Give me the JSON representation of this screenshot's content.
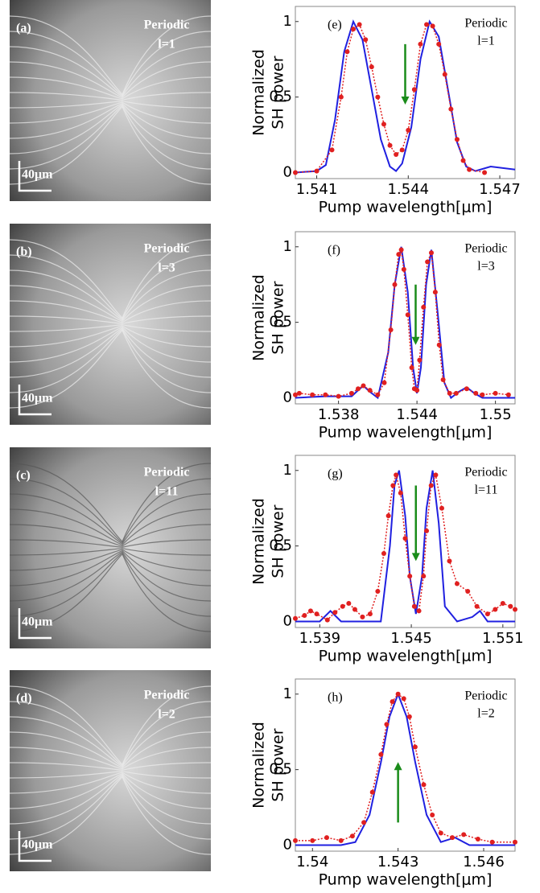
{
  "images": [
    {
      "label": "(a)",
      "text": [
        "Periodic",
        "l=1"
      ],
      "scale": "40μm"
    },
    {
      "label": "(b)",
      "text": [
        "Periodic",
        "l=3"
      ],
      "scale": "40μm"
    },
    {
      "label": "(c)",
      "text": [
        "Periodic",
        "l=11"
      ],
      "scale": "40μm"
    },
    {
      "label": "(d)",
      "text": [
        "Periodic",
        "l=2"
      ],
      "scale": "40μm"
    }
  ],
  "chart_data": [
    {
      "type": "line",
      "panel_label": "(e)",
      "annotation": [
        "Periodic",
        "l=1"
      ],
      "ylabel": [
        "Normalized",
        "SH power"
      ],
      "xlabel": "Pump wavelength[μm]",
      "xlim": [
        1.5403,
        1.5475
      ],
      "xticks": [
        1.541,
        1.544,
        1.547
      ],
      "ylim": [
        -0.04,
        1.1
      ],
      "yticks": [
        0,
        0.5,
        1
      ],
      "arrow": {
        "x": 1.5439,
        "y_from": 0.85,
        "y_to": 0.45,
        "color": "#1a8c1a"
      },
      "series": [
        {
          "color": "#2020e0",
          "line_style": "solid",
          "markers": false,
          "x": [
            1.5403,
            1.541,
            1.5413,
            1.5416,
            1.5419,
            1.5422,
            1.5425,
            1.5428,
            1.5431,
            1.5434,
            1.5436,
            1.5438,
            1.5441,
            1.5444,
            1.5447,
            1.545,
            1.5453,
            1.5456,
            1.5459,
            1.5462,
            1.5467,
            1.5475
          ],
          "values": [
            0,
            0.01,
            0.05,
            0.35,
            0.8,
            1,
            0.88,
            0.55,
            0.22,
            0.04,
            0.01,
            0.06,
            0.3,
            0.75,
            1,
            0.9,
            0.55,
            0.2,
            0.04,
            0.01,
            0.04,
            0.02
          ]
        },
        {
          "color": "#e02020",
          "line_style": "dotted",
          "markers": true,
          "x": [
            1.5403,
            1.541,
            1.5415,
            1.5418,
            1.542,
            1.5422,
            1.5424,
            1.5426,
            1.5428,
            1.543,
            1.5432,
            1.5434,
            1.5436,
            1.5438,
            1.544,
            1.5442,
            1.5444,
            1.5446,
            1.5448,
            1.545,
            1.5452,
            1.5454,
            1.5456,
            1.5458,
            1.546,
            1.5465
          ],
          "values": [
            0,
            0.01,
            0.15,
            0.5,
            0.8,
            0.95,
            0.98,
            0.88,
            0.7,
            0.5,
            0.32,
            0.18,
            0.12,
            0.15,
            0.28,
            0.55,
            0.85,
            0.98,
            0.97,
            0.85,
            0.65,
            0.42,
            0.22,
            0.08,
            0.02,
            0
          ]
        }
      ]
    },
    {
      "type": "line",
      "panel_label": "(f)",
      "annotation": [
        "Periodic",
        "l=3"
      ],
      "ylabel": [
        "Normalized",
        "SH power"
      ],
      "xlabel": "Pump wavelength[μm]",
      "xlim": [
        1.5347,
        1.5515
      ],
      "xticks": [
        1.538,
        1.544,
        1.55
      ],
      "ylim": [
        -0.04,
        1.1
      ],
      "yticks": [
        0,
        0.5,
        1
      ],
      "arrow": {
        "x": 1.5439,
        "y_from": 0.75,
        "y_to": 0.35,
        "color": "#1a8c1a"
      },
      "series": [
        {
          "color": "#2020e0",
          "line_style": "solid",
          "markers": false,
          "x": [
            1.5347,
            1.537,
            1.539,
            1.5395,
            1.5399,
            1.5404,
            1.541,
            1.5418,
            1.5423,
            1.5428,
            1.5433,
            1.5437,
            1.544,
            1.5443,
            1.5447,
            1.5451,
            1.5456,
            1.5461,
            1.5466,
            1.5472,
            1.5478,
            1.5484,
            1.549,
            1.5515
          ],
          "values": [
            0,
            0.01,
            0.01,
            0.05,
            0.08,
            0.04,
            0,
            0.3,
            0.75,
            1,
            0.7,
            0.2,
            0.03,
            0.2,
            0.75,
            0.98,
            0.55,
            0.1,
            0,
            0.04,
            0.07,
            0.03,
            0,
            0
          ]
        },
        {
          "color": "#e02020",
          "line_style": "dotted",
          "markers": true,
          "x": [
            1.5347,
            1.535,
            1.536,
            1.537,
            1.538,
            1.539,
            1.5395,
            1.5399,
            1.5404,
            1.541,
            1.5415,
            1.542,
            1.5423,
            1.5426,
            1.5428,
            1.543,
            1.5433,
            1.5436,
            1.5438,
            1.544,
            1.5442,
            1.5445,
            1.5448,
            1.5451,
            1.5454,
            1.5457,
            1.546,
            1.5465,
            1.547,
            1.5478,
            1.5485,
            1.549,
            1.55,
            1.551
          ],
          "values": [
            0.02,
            0.03,
            0.02,
            0.02,
            0.01,
            0.03,
            0.06,
            0.08,
            0.05,
            0.02,
            0.1,
            0.45,
            0.75,
            0.95,
            0.98,
            0.85,
            0.55,
            0.2,
            0.06,
            0.05,
            0.25,
            0.6,
            0.9,
            0.96,
            0.7,
            0.35,
            0.12,
            0.03,
            0.03,
            0.06,
            0.03,
            0.02,
            0.03,
            0.02
          ]
        }
      ]
    },
    {
      "type": "line",
      "panel_label": "(g)",
      "annotation": [
        "Periodic",
        "l=11"
      ],
      "ylabel": [
        "Normalized",
        "SH power"
      ],
      "xlabel": "Pump wavelength[μm]",
      "xlim": [
        1.5374,
        1.5518
      ],
      "xticks": [
        1.539,
        1.545,
        1.551
      ],
      "ylim": [
        -0.04,
        1.1
      ],
      "yticks": [
        0,
        0.5,
        1
      ],
      "arrow": {
        "x": 1.5453,
        "y_from": 0.9,
        "y_to": 0.4,
        "color": "#1a8c1a"
      },
      "series": [
        {
          "color": "#2020e0",
          "line_style": "solid",
          "markers": false,
          "x": [
            1.5374,
            1.539,
            1.5397,
            1.5404,
            1.541,
            1.543,
            1.5436,
            1.5439,
            1.5442,
            1.5446,
            1.5449,
            1.5453,
            1.5457,
            1.546,
            1.5464,
            1.5468,
            1.5472,
            1.548,
            1.549,
            1.5495,
            1.55,
            1.5518
          ],
          "values": [
            0,
            0,
            0.07,
            0,
            0,
            0,
            0.5,
            0.9,
            1,
            0.7,
            0.3,
            0.05,
            0.3,
            0.75,
            1,
            0.65,
            0.1,
            0,
            0.03,
            0.07,
            0,
            0
          ]
        },
        {
          "color": "#e02020",
          "line_style": "dotted",
          "markers": true,
          "x": [
            1.5374,
            1.538,
            1.5384,
            1.5388,
            1.5395,
            1.54,
            1.5405,
            1.5409,
            1.5413,
            1.5418,
            1.5423,
            1.5428,
            1.5432,
            1.5435,
            1.5438,
            1.544,
            1.5443,
            1.5446,
            1.5449,
            1.5452,
            1.5455,
            1.5458,
            1.546,
            1.5463,
            1.5466,
            1.547,
            1.5475,
            1.548,
            1.5487,
            1.5493,
            1.55,
            1.5505,
            1.551,
            1.5515,
            1.5518
          ],
          "values": [
            0.02,
            0.04,
            0.07,
            0.05,
            0.01,
            0.06,
            0.1,
            0.12,
            0.08,
            0.03,
            0.05,
            0.2,
            0.45,
            0.7,
            0.9,
            0.97,
            0.85,
            0.55,
            0.3,
            0.1,
            0.07,
            0.3,
            0.6,
            0.9,
            0.97,
            0.75,
            0.4,
            0.25,
            0.2,
            0.1,
            0.05,
            0.08,
            0.12,
            0.1,
            0.08
          ]
        }
      ]
    },
    {
      "type": "line",
      "panel_label": "(h)",
      "annotation": [
        "Periodic",
        "l=2"
      ],
      "ylabel": [
        "Normalized",
        "SH power"
      ],
      "xlabel": "Pump wavelength[μm]",
      "xlim": [
        1.5394,
        1.5471
      ],
      "xticks": [
        1.54,
        1.543,
        1.546
      ],
      "ylim": [
        -0.04,
        1.1
      ],
      "yticks": [
        0,
        0.5,
        1
      ],
      "arrow": {
        "x": 1.543,
        "y_from": 0.15,
        "y_to": 0.55,
        "color": "#1a8c1a"
      },
      "series": [
        {
          "color": "#2020e0",
          "line_style": "solid",
          "markers": false,
          "x": [
            1.5394,
            1.541,
            1.5415,
            1.542,
            1.5424,
            1.5427,
            1.543,
            1.5433,
            1.5436,
            1.544,
            1.5445,
            1.545,
            1.5455,
            1.5471
          ],
          "values": [
            0,
            0,
            0.02,
            0.2,
            0.55,
            0.85,
            1,
            0.85,
            0.55,
            0.2,
            0.02,
            0.05,
            0,
            0
          ]
        },
        {
          "color": "#e02020",
          "line_style": "dotted",
          "markers": true,
          "x": [
            1.5394,
            1.54,
            1.5405,
            1.541,
            1.5414,
            1.5418,
            1.5421,
            1.5424,
            1.5426,
            1.5428,
            1.543,
            1.5432,
            1.5434,
            1.5436,
            1.5439,
            1.5442,
            1.5445,
            1.5449,
            1.5453,
            1.5458,
            1.5463,
            1.5471
          ],
          "values": [
            0.03,
            0.03,
            0.05,
            0.03,
            0.06,
            0.15,
            0.35,
            0.6,
            0.8,
            0.95,
            1,
            0.97,
            0.85,
            0.65,
            0.4,
            0.2,
            0.08,
            0.05,
            0.07,
            0.04,
            0.02,
            0.02
          ]
        }
      ]
    }
  ]
}
